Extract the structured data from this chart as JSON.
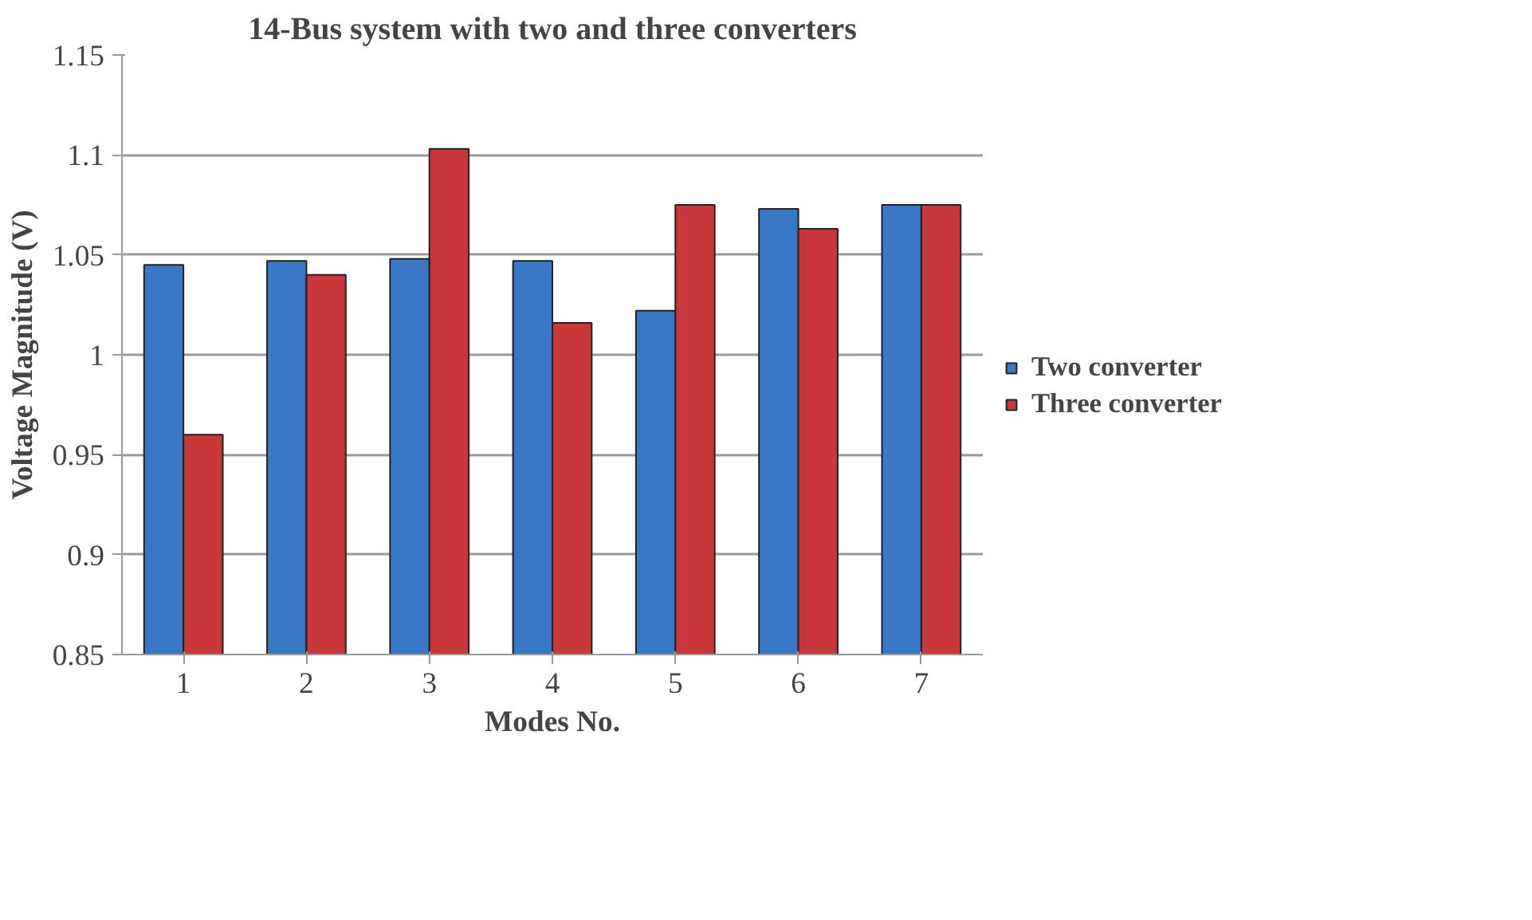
{
  "chart_data": {
    "type": "bar",
    "title": "14-Bus system with two and three converters",
    "xlabel": "Modes No.",
    "ylabel": "Voltage Magnitude (V)",
    "categories": [
      "1",
      "2",
      "3",
      "4",
      "5",
      "6",
      "7"
    ],
    "series": [
      {
        "name": "Two converter",
        "color": "#3a78c6",
        "values": [
          1.045,
          1.047,
          1.048,
          1.047,
          1.022,
          1.073,
          1.075
        ]
      },
      {
        "name": "Three converter",
        "color": "#c8383a",
        "values": [
          0.96,
          1.04,
          1.103,
          1.016,
          1.075,
          1.063,
          1.075
        ]
      }
    ],
    "ylim": [
      0.85,
      1.15
    ],
    "yticks": [
      0.85,
      0.9,
      0.95,
      1,
      1.05,
      1.1,
      1.15
    ],
    "grid": "y",
    "legend": "right"
  }
}
